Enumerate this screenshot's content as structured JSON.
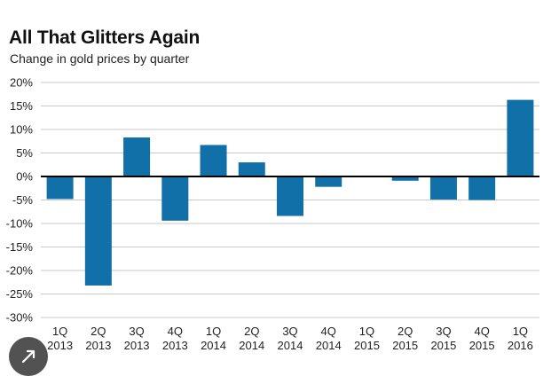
{
  "chart_data": {
    "type": "bar",
    "title": "All That Glitters Again",
    "subtitle": "Change in gold prices by quarter",
    "categories": [
      [
        "1Q",
        "2013"
      ],
      [
        "2Q",
        "2013"
      ],
      [
        "3Q",
        "2013"
      ],
      [
        "4Q",
        "2013"
      ],
      [
        "1Q",
        "2014"
      ],
      [
        "2Q",
        "2014"
      ],
      [
        "3Q",
        "2014"
      ],
      [
        "4Q",
        "2014"
      ],
      [
        "1Q",
        "2015"
      ],
      [
        "2Q",
        "2015"
      ],
      [
        "3Q",
        "2015"
      ],
      [
        "4Q",
        "2015"
      ],
      [
        "1Q",
        "2016"
      ]
    ],
    "values": [
      -4.8,
      -23.2,
      8.3,
      -9.4,
      6.7,
      3.0,
      -8.4,
      -2.2,
      0.0,
      -0.9,
      -4.9,
      -5.0,
      16.3
    ],
    "ylim": [
      -30,
      20
    ],
    "yticks": [
      20,
      15,
      10,
      5,
      0,
      -5,
      -10,
      -15,
      -20,
      -25,
      -30
    ],
    "tick_suffix": "%",
    "bar_color": "#1170a8",
    "grid": true
  },
  "ui": {
    "expand_icon": "expand-arrow-icon"
  }
}
